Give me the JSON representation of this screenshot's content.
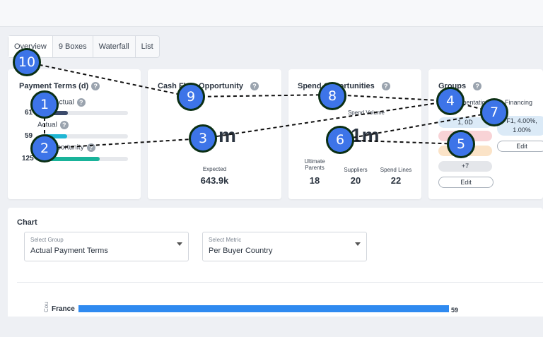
{
  "tabs": [
    "Overview",
    "9 Boxes",
    "Waterfall",
    "List"
  ],
  "payment_terms": {
    "title": "Payment Terms (d)",
    "rows": [
      {
        "label": "Actual",
        "value": "61",
        "fill": 0.28
      },
      {
        "label": "Actual",
        "value": "59",
        "fill": 0.27
      },
      {
        "label": "Opportunity",
        "value": "125",
        "fill": 0.66
      }
    ],
    "colors": [
      "#3b4a6b",
      "#1fb6d4",
      "#19b39a"
    ]
  },
  "cash_flow": {
    "title": "Cash Flow Opportunity",
    "big_value": "m",
    "expected_label": "Expected",
    "expected_value": "643.9k"
  },
  "spend": {
    "title": "Spend Opportunities",
    "volume_label": "Spend Volume",
    "big_value": "1m",
    "stats": [
      {
        "label": "Ultimate Parents",
        "value": "18"
      },
      {
        "label": "Suppliers",
        "value": "20"
      },
      {
        "label": "Spend Lines",
        "value": "22"
      }
    ]
  },
  "groups": {
    "title": "Groups",
    "col1_header": "Segmentation",
    "col2_header": "Financing",
    "col1_pills": [
      "1, 0D",
      "",
      ""
    ],
    "more": "+7",
    "edit1": "Edit",
    "col2_pill": "F1, 4.00%, 1.00%",
    "edit2": "Edit"
  },
  "chart": {
    "title": "Chart",
    "group_select": {
      "label": "Select Group",
      "value": "Actual Payment Terms"
    },
    "metric_select": {
      "label": "Select Metric",
      "value": "Per Buyer Country"
    }
  },
  "chart_data": {
    "type": "bar",
    "categories": [
      "France"
    ],
    "values": [
      59
    ],
    "ylabel": "Cou",
    "title": "",
    "xlabel": ""
  },
  "markers": [
    "1",
    "2",
    "3",
    "4",
    "5",
    "6",
    "7",
    "8",
    "9",
    "10"
  ]
}
